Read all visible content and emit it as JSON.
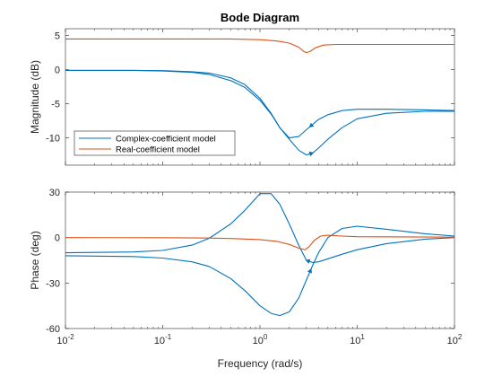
{
  "chart_data": {
    "type": "line",
    "title": "Bode Diagram",
    "xlabel": "Frequency (rad/s)",
    "x_scale": "log",
    "xlim": [
      0.01,
      100
    ],
    "x_tick_labels": [
      {
        "base": "10",
        "exp": "-2"
      },
      {
        "base": "10",
        "exp": "-1"
      },
      {
        "base": "10",
        "exp": "0"
      },
      {
        "base": "10",
        "exp": "1"
      },
      {
        "base": "10",
        "exp": "2"
      }
    ],
    "legend": {
      "placement": "lower-left of magnitude panel",
      "entries": [
        "Complex-coefficient model",
        "Real-coefficient model"
      ]
    },
    "colors": {
      "complex": "#0072BD",
      "real": "#D95319"
    },
    "panels": [
      {
        "name": "magnitude",
        "ylabel": "Magnitude (dB)",
        "ylim": [
          -14,
          6
        ],
        "yticks": [
          5,
          0,
          -5,
          -10
        ],
        "grid": false,
        "series": [
          {
            "name": "Complex-coefficient model",
            "branch": "positive frequencies",
            "x": [
              0.01,
              0.05,
              0.1,
              0.2,
              0.3,
              0.5,
              0.7,
              1.0,
              1.3,
              1.6,
              2.0,
              2.5,
              3.0,
              3.5,
              4.0,
              5.0,
              7.0,
              10,
              20,
              50,
              100
            ],
            "y": [
              -0.1,
              -0.1,
              -0.2,
              -0.4,
              -0.7,
              -1.6,
              -2.6,
              -4.5,
              -6.5,
              -8.5,
              -10.2,
              -11.8,
              -12.5,
              -12.2,
              -11.5,
              -10.2,
              -8.5,
              -7.2,
              -6.4,
              -6.1,
              -6.1
            ]
          },
          {
            "name": "Complex-coefficient model",
            "branch": "negative frequencies",
            "x": [
              0.01,
              0.05,
              0.1,
              0.2,
              0.3,
              0.5,
              0.7,
              1.0,
              1.3,
              1.6,
              2.0,
              2.5,
              3.0,
              4.0,
              5.0,
              7.0,
              10,
              20,
              50,
              100
            ],
            "y": [
              -0.1,
              -0.1,
              -0.15,
              -0.3,
              -0.5,
              -1.2,
              -2.2,
              -4.2,
              -6.4,
              -8.5,
              -10.0,
              -9.8,
              -8.8,
              -7.3,
              -6.6,
              -6.0,
              -5.8,
              -5.8,
              -5.9,
              -6.0
            ]
          },
          {
            "name": "Real-coefficient model",
            "x": [
              0.01,
              0.1,
              0.5,
              1.0,
              1.5,
              2.0,
              2.5,
              2.8,
              3.0,
              3.3,
              3.7,
              4.5,
              6.0,
              10,
              100
            ],
            "y": [
              4.5,
              4.5,
              4.5,
              4.4,
              4.2,
              3.9,
              3.3,
              2.7,
              2.5,
              2.7,
              3.2,
              3.6,
              3.7,
              3.7,
              3.7
            ]
          }
        ]
      },
      {
        "name": "phase",
        "ylabel": "Phase (deg)",
        "ylim": [
          -60,
          30
        ],
        "yticks": [
          30,
          0,
          -30,
          -60
        ],
        "grid": false,
        "series": [
          {
            "name": "Complex-coefficient model",
            "branch": "positive frequencies",
            "x": [
              0.01,
              0.05,
              0.1,
              0.2,
              0.3,
              0.5,
              0.7,
              1.0,
              1.3,
              1.6,
              2.0,
              2.5,
              3.0,
              3.5,
              4.0,
              5.0,
              7.0,
              10,
              20,
              50,
              100
            ],
            "y": [
              -12,
              -12.5,
              -13.5,
              -16,
              -19,
              -27,
              -35,
              -45,
              -50,
              -51.5,
              -49,
              -40,
              -28,
              -18,
              -10,
              0,
              6,
              7.5,
              5.5,
              2.5,
              1
            ]
          },
          {
            "name": "Complex-coefficient model",
            "branch": "negative frequencies",
            "x": [
              0.01,
              0.05,
              0.1,
              0.2,
              0.3,
              0.5,
              0.7,
              1.0,
              1.3,
              1.6,
              2.0,
              2.5,
              3.0,
              3.5,
              4.0,
              5.0,
              7.0,
              10,
              20,
              50,
              100
            ],
            "y": [
              -10,
              -9.5,
              -8.5,
              -5,
              -0.5,
              9,
              18,
              29,
              29,
              22,
              9,
              -5,
              -15,
              -16.5,
              -16,
              -14,
              -11,
              -8,
              -4,
              -1,
              0
            ]
          },
          {
            "name": "Real-coefficient model",
            "x": [
              0.01,
              0.1,
              0.3,
              0.5,
              1.0,
              1.5,
              2.0,
              2.5,
              2.9,
              3.2,
              3.6,
              4.2,
              5.0,
              7.0,
              10,
              100
            ],
            "y": [
              0,
              -0.1,
              -0.3,
              -0.6,
              -1.3,
              -2.5,
              -4.5,
              -7,
              -8,
              -6,
              -2,
              1,
              1.5,
              1.0,
              0.6,
              0.3
            ]
          }
        ]
      }
    ]
  }
}
